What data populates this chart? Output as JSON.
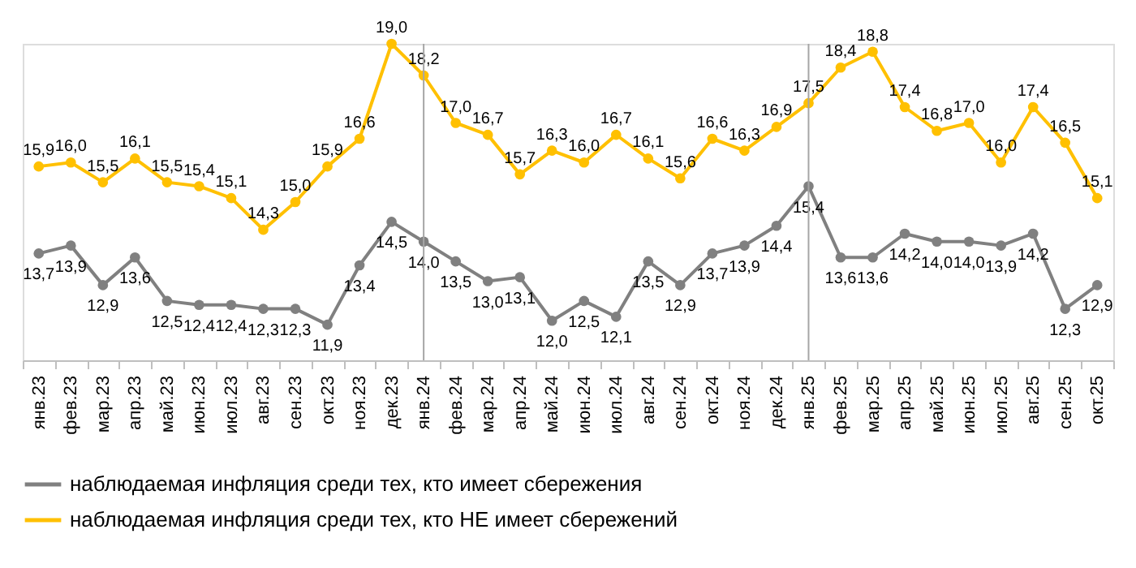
{
  "chart_data": {
    "type": "line",
    "categories": [
      "янв.23",
      "фев.23",
      "мар.23",
      "апр.23",
      "май.23",
      "июн.23",
      "июл.23",
      "авг.23",
      "сен.23",
      "окт.23",
      "ноя.23",
      "дек.23",
      "янв.24",
      "фев.24",
      "мар.24",
      "апр.24",
      "май.24",
      "июн.24",
      "июл.24",
      "авг.24",
      "сен.24",
      "окт.24",
      "ноя.24",
      "дек.24",
      "янв.25",
      "фев.25",
      "мар.25",
      "апр.25",
      "май.25",
      "июн.25",
      "июл.25",
      "авг.25",
      "сен.25",
      "окт.25"
    ],
    "series": [
      {
        "name": "наблюдаемая инфляция  среди тех, кто имеет сбережения",
        "color": "#808080",
        "values": [
          13.7,
          13.9,
          12.9,
          13.6,
          12.5,
          12.4,
          12.4,
          12.3,
          12.3,
          11.9,
          13.4,
          14.5,
          14.0,
          13.5,
          13.0,
          13.1,
          12.0,
          12.5,
          12.1,
          13.5,
          12.9,
          13.7,
          13.9,
          14.4,
          15.4,
          13.6,
          13.6,
          14.2,
          14.0,
          14.0,
          13.9,
          14.2,
          12.3,
          12.9
        ],
        "value_labels": [
          "13,7",
          "13,9",
          "12,9",
          "13,6",
          "12,5",
          "12,4",
          "12,4",
          "12,3",
          "12,3",
          "11,9",
          "13,4",
          "14,5",
          "14,0",
          "13,5",
          "13,0",
          "13,1",
          "12,0",
          "12,5",
          "12,1",
          "13,5",
          "12,9",
          "13,7",
          "13,9",
          "14,4",
          "15,4",
          "13,6",
          "13,6",
          "14,2",
          "14,0",
          "14,0",
          "13,9",
          "14,2",
          "12,3",
          "12,9"
        ]
      },
      {
        "name": "наблюдаемая инфляция  среди тех, кто НЕ имеет сбережений",
        "color": "#ffc000",
        "values": [
          15.9,
          16.0,
          15.5,
          16.1,
          15.5,
          15.4,
          15.1,
          14.3,
          15.0,
          15.9,
          16.6,
          19.0,
          18.2,
          17.0,
          16.7,
          15.7,
          16.3,
          16.0,
          16.7,
          16.1,
          15.6,
          16.6,
          16.3,
          16.9,
          17.5,
          18.4,
          18.8,
          17.4,
          16.8,
          17.0,
          16.0,
          17.4,
          16.5,
          15.1
        ],
        "value_labels": [
          "15,9",
          "16,0",
          "15,5",
          "16,1",
          "15,5",
          "15,4",
          "15,1",
          "14,3",
          "15,0",
          "15,9",
          "16,6",
          "19,0",
          "18,2",
          "17,0",
          "16,7",
          "15,7",
          "16,3",
          "16,0",
          "16,7",
          "16,1",
          "15,6",
          "16,6",
          "16,3",
          "16,9",
          "17,5",
          "18,4",
          "18,8",
          "17,4",
          "16,8",
          "17,0",
          "16,0",
          "17,4",
          "16,5",
          "15,1"
        ]
      }
    ],
    "ref_lines": [
      {
        "axis": "x",
        "value": "янв.24",
        "color": "#a6a6a6"
      },
      {
        "axis": "x",
        "value": "янв.25",
        "color": "#a6a6a6"
      }
    ],
    "grid": false,
    "legend": "bottom",
    "marker": "circle",
    "line_style": "solid",
    "tick_labels": "x"
  }
}
